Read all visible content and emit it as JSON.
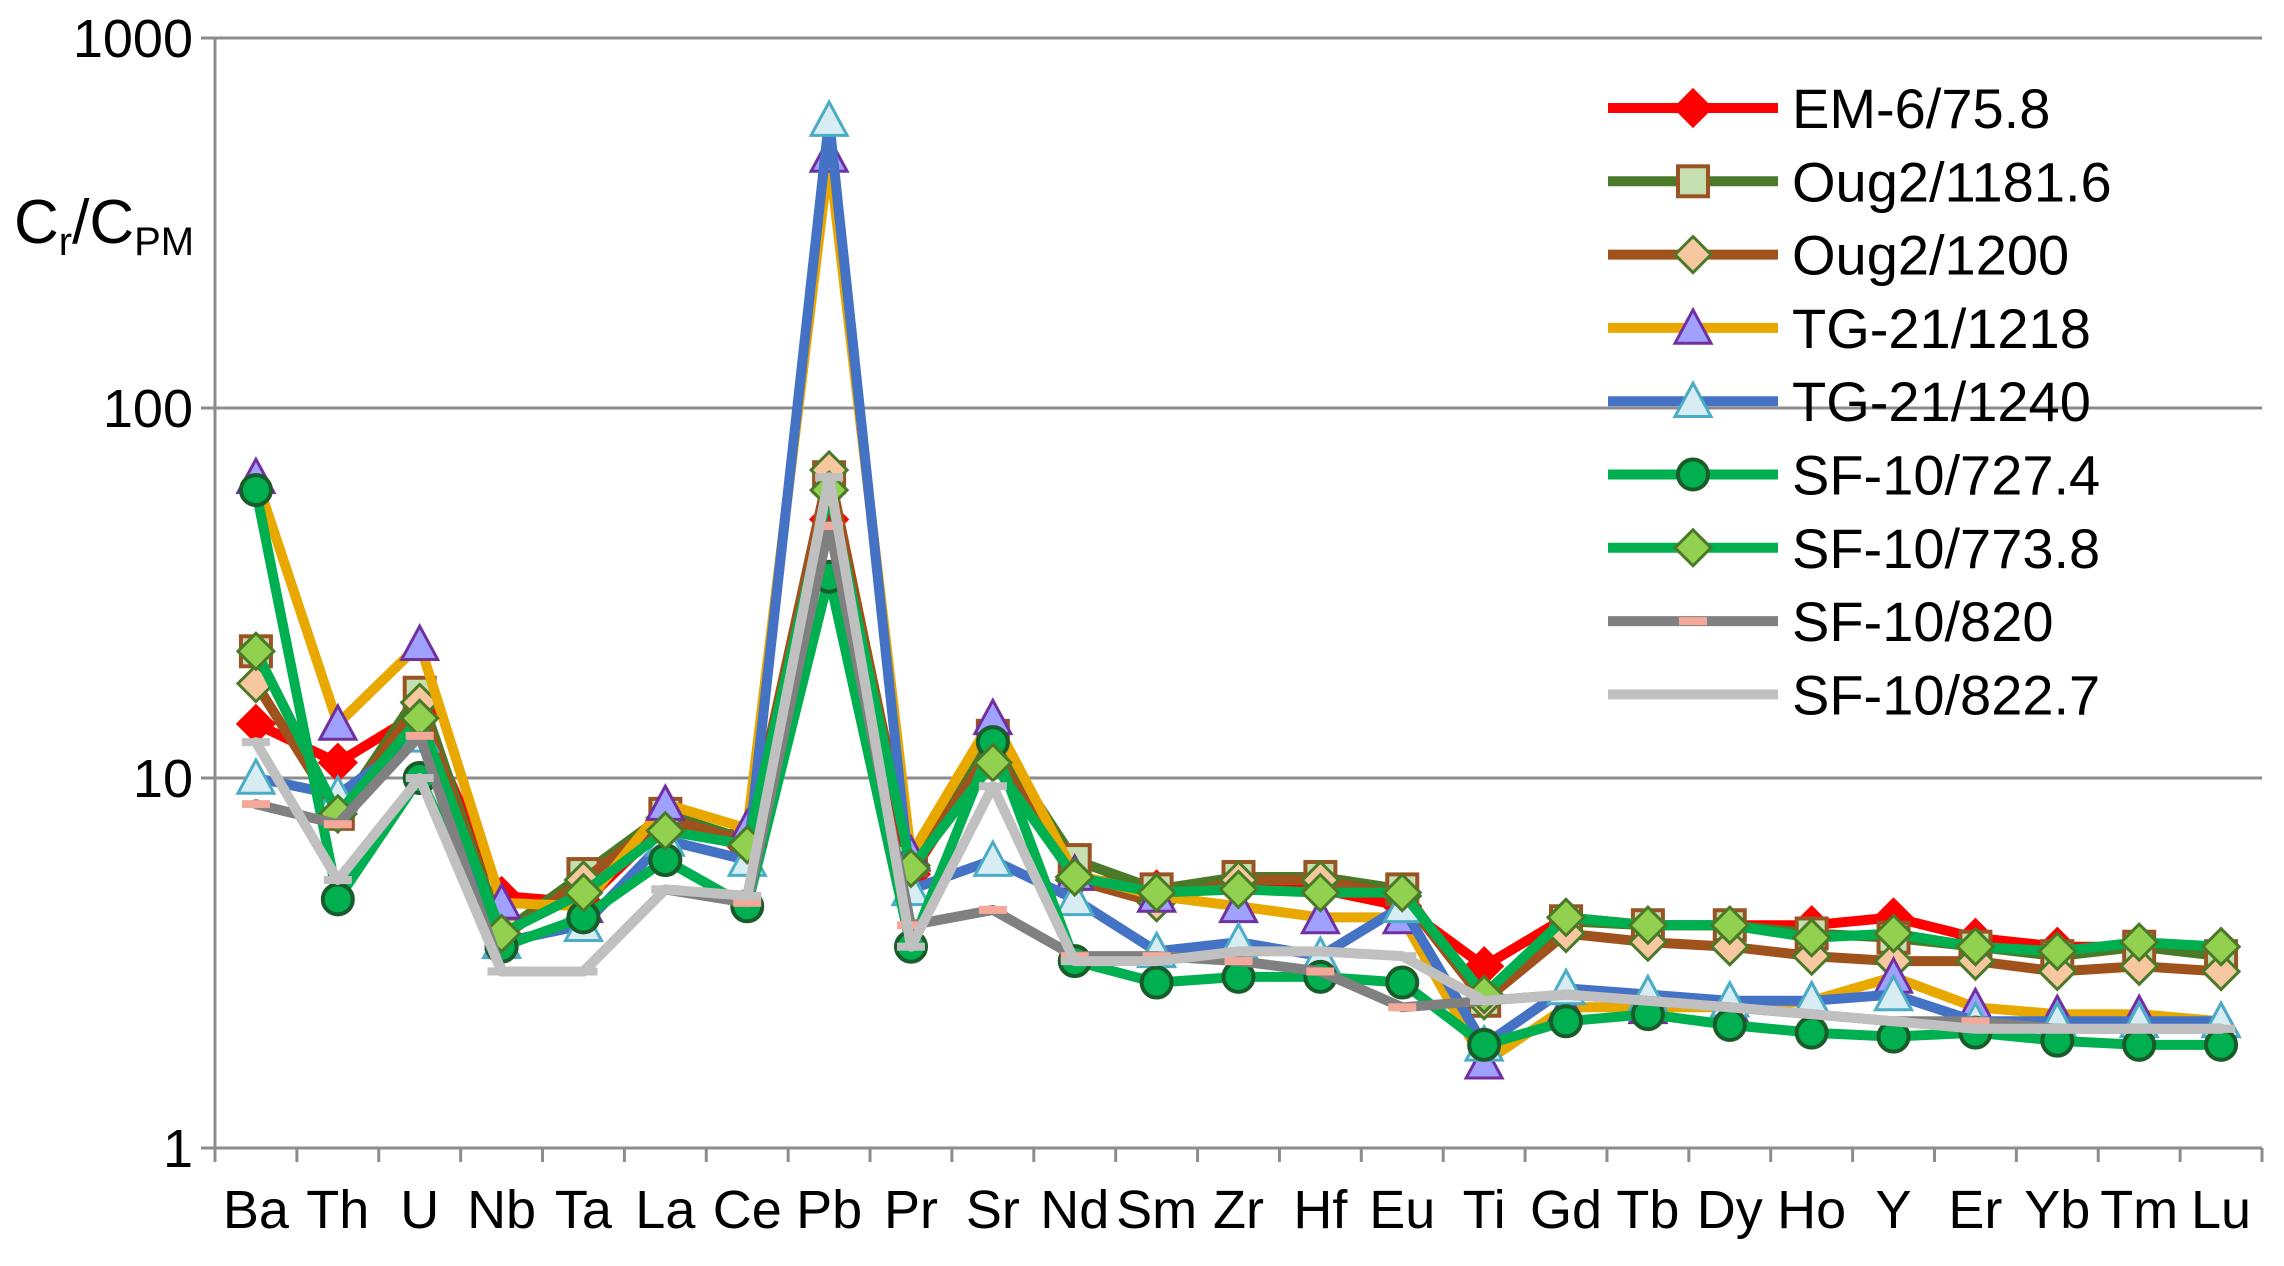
{
  "chart_data": {
    "type": "line",
    "yscale": "log",
    "ylim": [
      1,
      1000
    ],
    "yticks": [
      "1",
      "10",
      "100",
      "1000"
    ],
    "ylabel": {
      "main": "C",
      "sub1": "r",
      "sep": "/C",
      "sub2": "PM"
    },
    "xlabel": "",
    "grid": true,
    "legend_position": "top-right",
    "categories": [
      "Ba",
      "Th",
      "U",
      "Nb",
      "Ta",
      "La",
      "Ce",
      "Pb",
      "Pr",
      "Sr",
      "Nd",
      "Sm",
      "Zr",
      "Hf",
      "Eu",
      "Ti",
      "Gd",
      "Tb",
      "Dy",
      "Ho",
      "Y",
      "Er",
      "Yb",
      "Tm",
      "Lu"
    ],
    "series": [
      {
        "name": "EM-6/75.8",
        "color": "#ff0000",
        "marker": "diamond",
        "marker_fill": "#ff0000",
        "marker_stroke": "#ff0000",
        "values": [
          14,
          11,
          15,
          4.8,
          4.6,
          7.5,
          6.5,
          50,
          5.5,
          12,
          5.4,
          5.0,
          5.2,
          5.0,
          4.5,
          3.1,
          4.2,
          4.0,
          4.0,
          4.0,
          4.2,
          3.7,
          3.5,
          3.5,
          3.5
        ]
      },
      {
        "name": "Oug2/1181.6",
        "color": "#4a7a28",
        "marker": "square",
        "marker_fill": "#c6dfb0",
        "marker_stroke": "#9a5424",
        "values": [
          22,
          8,
          17,
          3.8,
          5.5,
          8,
          6.8,
          65,
          6,
          13,
          6,
          5,
          5.4,
          5.4,
          5,
          2.5,
          4.1,
          4,
          4,
          3.8,
          3.7,
          3.5,
          3.3,
          3.5,
          3.3
        ]
      },
      {
        "name": "Oug2/1200",
        "color": "#a0521c",
        "marker": "diamond",
        "marker_fill": "#f7c8a0",
        "marker_stroke": "#4a7a28",
        "values": [
          18,
          8,
          16,
          3.7,
          5.3,
          7.8,
          6.7,
          68,
          5.8,
          12,
          5.3,
          4.6,
          5.3,
          5.3,
          4.8,
          2.5,
          3.8,
          3.6,
          3.5,
          3.3,
          3.2,
          3.2,
          3.0,
          3.1,
          3.0
        ]
      },
      {
        "name": "TG-21/1218",
        "color": "#e8a800",
        "marker": "triangle",
        "marker_fill": "#a0a0ff",
        "marker_stroke": "#7030a0",
        "values": [
          65,
          14,
          23,
          4.6,
          4.5,
          8.5,
          7.3,
          480,
          6.2,
          14.5,
          5.5,
          4.8,
          4.5,
          4.2,
          4.2,
          1.7,
          2.4,
          2.4,
          2.4,
          2.5,
          2.9,
          2.4,
          2.3,
          2.3,
          2.2
        ]
      },
      {
        "name": "TG-21/1240",
        "color": "#4472c4",
        "marker": "triangle",
        "marker_fill": "#d8ecf4",
        "marker_stroke": "#4bacc6",
        "values": [
          10,
          9,
          13,
          3.6,
          4.0,
          6.8,
          6.0,
          600,
          5.0,
          6.0,
          4.7,
          3.4,
          3.6,
          3.3,
          4.5,
          1.9,
          2.7,
          2.6,
          2.5,
          2.5,
          2.6,
          2.2,
          2.2,
          2.2,
          2.2
        ]
      },
      {
        "name": "SF-10/727.4",
        "color": "#00b050",
        "marker": "circle",
        "marker_fill": "#00b050",
        "marker_stroke": "#1a5b2a",
        "values": [
          60,
          4.7,
          10,
          3.5,
          4.2,
          6.0,
          4.5,
          35,
          3.5,
          12.5,
          3.2,
          2.8,
          2.9,
          2.9,
          2.8,
          1.9,
          2.2,
          2.3,
          2.15,
          2.05,
          2.0,
          2.05,
          1.95,
          1.9,
          1.9
        ]
      },
      {
        "name": "SF-10/773.8",
        "color": "#00b050",
        "marker": "diamond",
        "marker_fill": "#92d050",
        "marker_stroke": "#4a7a28",
        "values": [
          22,
          8,
          14.5,
          3.8,
          4.9,
          7.2,
          6.6,
          60,
          5.7,
          11,
          5.4,
          4.9,
          5.0,
          4.9,
          4.9,
          2.6,
          4.2,
          4.0,
          4.0,
          3.7,
          3.8,
          3.5,
          3.4,
          3.6,
          3.5
        ]
      },
      {
        "name": "SF-10/820",
        "color": "#808080",
        "marker": "dash",
        "marker_fill": "#f4a89a",
        "marker_stroke": "#f4a89a",
        "values": [
          8.5,
          7.5,
          13,
          3.0,
          3.0,
          5.0,
          4.6,
          48,
          4.0,
          4.4,
          3.3,
          3.3,
          3.2,
          3.0,
          2.4,
          2.5,
          2.6,
          2.5,
          2.4,
          2.3,
          2.2,
          2.2,
          2.1,
          2.1,
          2.1
        ]
      },
      {
        "name": "SF-10/822.7",
        "color": "#c0c0c0",
        "marker": "dash",
        "marker_fill": "#c0c0c0",
        "marker_stroke": "#c0c0c0",
        "values": [
          12.5,
          5.3,
          10,
          3.0,
          3.0,
          5.0,
          4.8,
          65,
          3.5,
          9.5,
          3.2,
          3.2,
          3.4,
          3.4,
          3.3,
          2.5,
          2.6,
          2.5,
          2.4,
          2.3,
          2.2,
          2.1,
          2.1,
          2.1,
          2.1
        ]
      }
    ]
  }
}
